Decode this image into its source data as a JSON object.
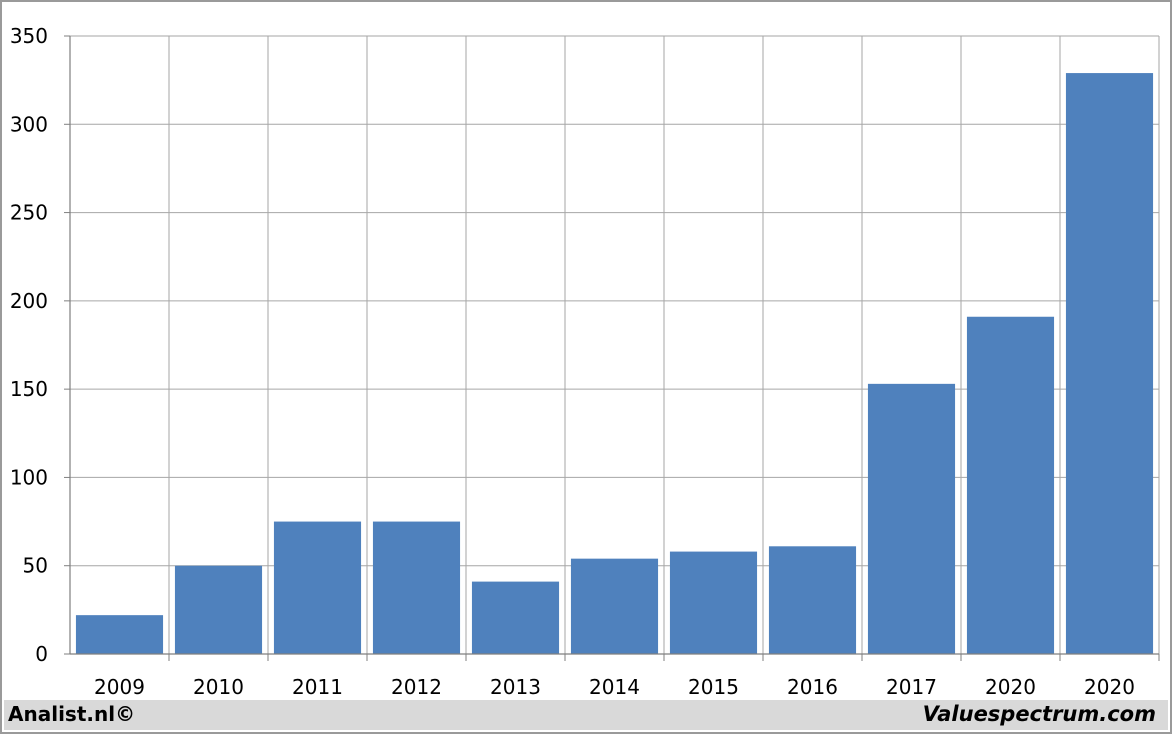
{
  "chart_data": {
    "type": "bar",
    "title": "",
    "xlabel": "",
    "ylabel": "",
    "categories": [
      "2009",
      "2010",
      "2011",
      "2012",
      "2013",
      "2014",
      "2015",
      "2016",
      "2017",
      "2020",
      "2020"
    ],
    "values": [
      22,
      50,
      75,
      75,
      41,
      54,
      58,
      61,
      153,
      191,
      329
    ],
    "ylim": [
      0,
      350
    ],
    "yticks": [
      "0",
      "50",
      "100",
      "150",
      "200",
      "250",
      "300",
      "350"
    ],
    "grid": true,
    "bar_color": "#4f81bd"
  },
  "footer": {
    "left": "Analist.nl©",
    "right": "Valuespectrum.com"
  }
}
